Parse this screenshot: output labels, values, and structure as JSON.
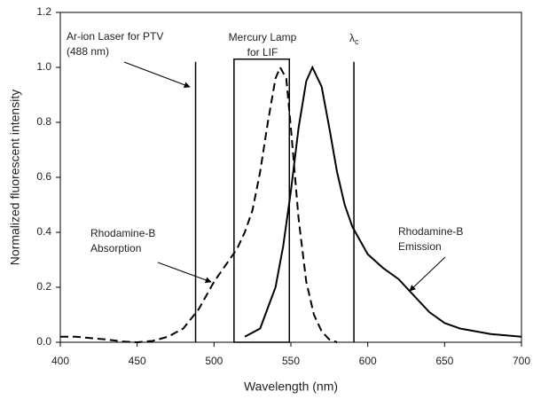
{
  "chart_data": {
    "type": "line",
    "x_label": "Wavelength (nm)",
    "y_label": "Normalized fluorescent intensity",
    "xlim": [
      400,
      700
    ],
    "xticks": [
      400,
      450,
      500,
      550,
      600,
      650,
      700
    ],
    "ylim": [
      0,
      1.2
    ],
    "yticks": [
      {
        "value": 0,
        "label": "0.0"
      },
      {
        "value": 0.2,
        "label": "0.2"
      },
      {
        "value": 0.4,
        "label": "0.4"
      },
      {
        "value": 0.6,
        "label": "0.6"
      },
      {
        "value": 0.8,
        "label": "0.8"
      },
      {
        "value": 1,
        "label": "1.0"
      },
      {
        "value": 1.2,
        "label": "1.2"
      }
    ],
    "series": [
      {
        "name": "Rhodamine-B Absorption",
        "color": "#000000",
        "dash": true,
        "x": [
          400,
          410,
          420,
          430,
          440,
          450,
          460,
          470,
          480,
          490,
          500,
          510,
          515,
          520,
          525,
          530,
          535,
          540,
          543,
          547,
          550,
          555,
          560,
          565,
          570,
          575,
          580
        ],
        "values": [
          0.02,
          0.02,
          0.015,
          0.01,
          0.003,
          0,
          0.005,
          0.02,
          0.05,
          0.12,
          0.22,
          0.3,
          0.34,
          0.4,
          0.48,
          0.62,
          0.8,
          0.96,
          1.0,
          0.96,
          0.78,
          0.45,
          0.22,
          0.1,
          0.04,
          0.01,
          0
        ]
      },
      {
        "name": "Rhodamine-B Emission",
        "color": "#000000",
        "dash": false,
        "x": [
          520,
          530,
          540,
          545,
          550,
          555,
          560,
          564,
          570,
          575,
          580,
          585,
          590,
          600,
          610,
          620,
          630,
          640,
          650,
          660,
          670,
          680,
          690,
          700
        ],
        "values": [
          0.02,
          0.05,
          0.2,
          0.35,
          0.55,
          0.78,
          0.95,
          1.0,
          0.93,
          0.78,
          0.62,
          0.5,
          0.42,
          0.32,
          0.27,
          0.23,
          0.17,
          0.11,
          0.07,
          0.05,
          0.04,
          0.03,
          0.025,
          0.02
        ]
      }
    ],
    "vlines": [
      {
        "x": 488,
        "top": 1.02
      },
      {
        "x": 591,
        "top": 1.02
      }
    ],
    "lamp_band": {
      "x": [
        513,
        549
      ],
      "top": 1.03
    },
    "annotations": {
      "laser": [
        "Ar-ion Laser for PTV",
        "(488 nm)"
      ],
      "lamp": [
        "Mercury Lamp",
        "for LIF"
      ],
      "cutoff": {
        "text": "λ",
        "sub": "c"
      },
      "absorption": [
        "Rhodamine-B",
        "Absorption"
      ],
      "emission": [
        "Rhodamine-B",
        "Emission"
      ]
    }
  }
}
